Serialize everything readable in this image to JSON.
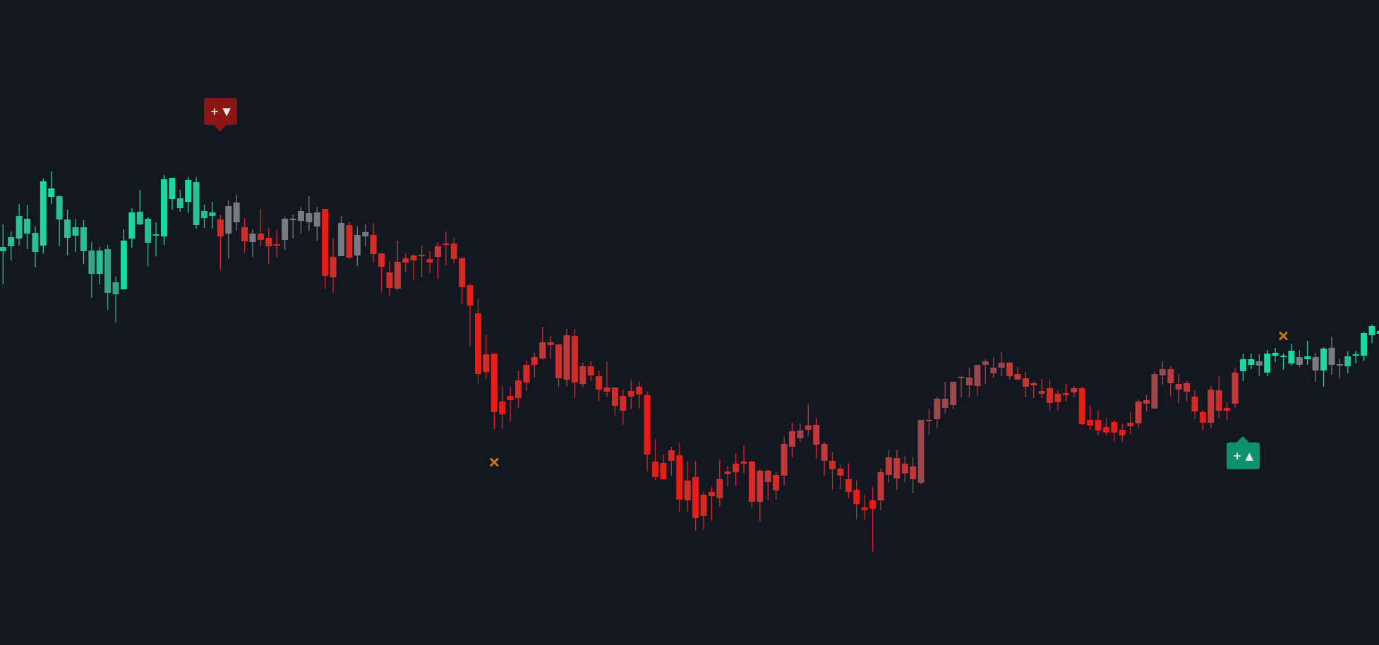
{
  "chart_data": {
    "type": "candlestick",
    "title": "",
    "xlabel": "",
    "ylabel": "",
    "ylim": [
      -14,
      900
    ],
    "grid": false,
    "background": "#131722",
    "colors": {
      "T1": "#17d9a3",
      "T2": "#2bbf98",
      "T3": "#36a58c",
      "G": "#787b86",
      "R1": "#e81e16",
      "R2": "#d42b26",
      "R3": "#c23838",
      "R4": "#9c474c",
      "cross": "#c77d12",
      "sell_flag": "#8b1510",
      "buy_flag": "#0e8f6e"
    },
    "candle_fields": [
      "body_top",
      "body_bottom",
      "high",
      "low",
      "color"
    ],
    "candles": [
      [
        550,
        544,
        582,
        497,
        "T2"
      ],
      [
        564,
        551,
        572,
        531,
        "T2"
      ],
      [
        594,
        562,
        611,
        552,
        "T2"
      ],
      [
        590,
        569,
        610,
        547,
        "T2"
      ],
      [
        570,
        543,
        579,
        521,
        "T2"
      ],
      [
        643,
        552,
        647,
        541,
        "T1"
      ],
      [
        633,
        621,
        657,
        611,
        "T1"
      ],
      [
        622,
        589,
        623,
        551,
        "T2"
      ],
      [
        589,
        563,
        603,
        538,
        "T2"
      ],
      [
        578,
        566,
        590,
        543,
        "T2"
      ],
      [
        578,
        544,
        588,
        526,
        "T2"
      ],
      [
        545,
        512,
        557,
        478,
        "T3"
      ],
      [
        545,
        512,
        550,
        497,
        "T2"
      ],
      [
        547,
        485,
        553,
        461,
        "T3"
      ],
      [
        500,
        483,
        508,
        443,
        "T3"
      ],
      [
        559,
        490,
        575,
        490,
        "T1"
      ],
      [
        599,
        562,
        605,
        549,
        "T1"
      ],
      [
        600,
        582,
        631,
        581,
        "T2"
      ],
      [
        590,
        556,
        592,
        523,
        "T2"
      ],
      [
        567,
        567,
        585,
        537,
        "T2"
      ],
      [
        646,
        565,
        652,
        553,
        "T1"
      ],
      [
        648,
        618,
        648,
        603,
        "T1"
      ],
      [
        619,
        605,
        631,
        600,
        "T2"
      ],
      [
        645,
        614,
        649,
        598,
        "T1"
      ],
      [
        642,
        581,
        649,
        576,
        "T2"
      ],
      [
        601,
        591,
        610,
        577,
        "T2"
      ],
      [
        599,
        594,
        614,
        576,
        "T2"
      ],
      [
        589,
        565,
        595,
        518,
        "R2"
      ],
      [
        608,
        569,
        616,
        534,
        "G"
      ],
      [
        613,
        585,
        624,
        573,
        "G"
      ],
      [
        578,
        558,
        591,
        542,
        "R2"
      ],
      [
        569,
        557,
        575,
        536,
        "G"
      ],
      [
        569,
        560,
        604,
        551,
        "R2"
      ],
      [
        563,
        551,
        577,
        526,
        "R2"
      ],
      [
        553,
        553,
        574,
        535,
        "R2"
      ],
      [
        590,
        560,
        593,
        546,
        "G"
      ],
      [
        589,
        589,
        596,
        562,
        "G"
      ],
      [
        601,
        587,
        607,
        569,
        "G"
      ],
      [
        598,
        585,
        622,
        573,
        "G"
      ],
      [
        599,
        579,
        607,
        559,
        "G"
      ],
      [
        604,
        509,
        604,
        491,
        "R1"
      ],
      [
        536,
        507,
        562,
        485,
        "R2"
      ],
      [
        584,
        537,
        594,
        537,
        "G"
      ],
      [
        581,
        535,
        586,
        533,
        "R2"
      ],
      [
        567,
        538,
        579,
        523,
        "G"
      ],
      [
        571,
        565,
        582,
        551,
        "G"
      ],
      [
        567,
        540,
        584,
        528,
        "R2"
      ],
      [
        541,
        522,
        541,
        487,
        "R2"
      ],
      [
        514,
        492,
        530,
        480,
        "R2"
      ],
      [
        529,
        491,
        559,
        489,
        "R3"
      ],
      [
        534,
        528,
        542,
        514,
        "R2"
      ],
      [
        538,
        531,
        540,
        503,
        "R2"
      ],
      [
        538,
        538,
        552,
        507,
        "R2"
      ],
      [
        533,
        528,
        544,
        513,
        "R2"
      ],
      [
        551,
        536,
        557,
        505,
        "R3"
      ],
      [
        554,
        554,
        572,
        524,
        "R2"
      ],
      [
        555,
        533,
        563,
        527,
        "R2"
      ],
      [
        534,
        493,
        536,
        469,
        "R2"
      ],
      [
        496,
        467,
        498,
        410,
        "R1"
      ],
      [
        456,
        370,
        477,
        356,
        "R1"
      ],
      [
        398,
        373,
        426,
        363,
        "R2"
      ],
      [
        399,
        316,
        399,
        292,
        "R1"
      ],
      [
        331,
        313,
        353,
        293,
        "R1"
      ],
      [
        339,
        333,
        352,
        303,
        "R1"
      ],
      [
        361,
        336,
        375,
        322,
        "R2"
      ],
      [
        383,
        358,
        389,
        346,
        "R2"
      ],
      [
        394,
        383,
        400,
        365,
        "R2"
      ],
      [
        415,
        392,
        437,
        390,
        "R3"
      ],
      [
        415,
        411,
        424,
        392,
        "R3"
      ],
      [
        412,
        364,
        412,
        352,
        "R2"
      ],
      [
        425,
        362,
        434,
        352,
        "R3"
      ],
      [
        424,
        358,
        433,
        336,
        "R2"
      ],
      [
        381,
        356,
        386,
        351,
        "R3"
      ],
      [
        381,
        368,
        388,
        360,
        "R2"
      ],
      [
        367,
        348,
        375,
        332,
        "R2"
      ],
      [
        351,
        345,
        387,
        337,
        "R2"
      ],
      [
        351,
        325,
        351,
        311,
        "R2"
      ],
      [
        339,
        318,
        348,
        298,
        "R2"
      ],
      [
        346,
        338,
        361,
        320,
        "R2"
      ],
      [
        352,
        341,
        359,
        321,
        "R2"
      ],
      [
        340,
        256,
        345,
        232,
        "R1"
      ],
      [
        246,
        224,
        278,
        220,
        "R1"
      ],
      [
        244,
        221,
        256,
        220,
        "R1"
      ],
      [
        262,
        247,
        267,
        226,
        "R2"
      ],
      [
        255,
        192,
        272,
        174,
        "R1"
      ],
      [
        219,
        191,
        246,
        175,
        "R2"
      ],
      [
        224,
        166,
        247,
        148,
        "R1"
      ],
      [
        199,
        169,
        203,
        149,
        "R2"
      ],
      [
        203,
        197,
        210,
        162,
        "R2"
      ],
      [
        221,
        194,
        249,
        182,
        "R2"
      ],
      [
        232,
        228,
        240,
        210,
        "R2"
      ],
      [
        243,
        231,
        257,
        211,
        "R2"
      ],
      [
        246,
        243,
        269,
        229,
        "R2"
      ],
      [
        246,
        189,
        247,
        181,
        "R2"
      ],
      [
        233,
        189,
        235,
        161,
        "R3"
      ],
      [
        233,
        217,
        234,
        191,
        "R3"
      ],
      [
        227,
        205,
        231,
        192,
        "R2"
      ],
      [
        271,
        226,
        281,
        212,
        "R3"
      ],
      [
        289,
        267,
        301,
        252,
        "R3"
      ],
      [
        290,
        279,
        300,
        274,
        "R4"
      ],
      [
        297,
        291,
        327,
        282,
        "R3"
      ],
      [
        298,
        270,
        308,
        250,
        "R3"
      ],
      [
        271,
        247,
        273,
        226,
        "R3"
      ],
      [
        247,
        235,
        259,
        207,
        "R2"
      ],
      [
        236,
        226,
        242,
        207,
        "R2"
      ],
      [
        221,
        203,
        243,
        194,
        "R2"
      ],
      [
        206,
        186,
        219,
        164,
        "R1"
      ],
      [
        181,
        177,
        199,
        163,
        "R1"
      ],
      [
        191,
        179,
        210,
        118,
        "R1"
      ],
      [
        231,
        191,
        236,
        177,
        "R3"
      ],
      [
        252,
        227,
        262,
        216,
        "R3"
      ],
      [
        251,
        222,
        263,
        206,
        "R3"
      ],
      [
        243,
        229,
        254,
        217,
        "R3"
      ],
      [
        239,
        221,
        252,
        201,
        "R3"
      ],
      [
        305,
        216,
        305,
        214,
        "R4"
      ],
      [
        304,
        304,
        321,
        283,
        "R4"
      ],
      [
        335,
        306,
        338,
        293,
        "R4"
      ],
      [
        335,
        322,
        359,
        314,
        "R4"
      ],
      [
        359,
        326,
        359,
        320,
        "R4"
      ],
      [
        365,
        365,
        368,
        337,
        "R4"
      ],
      [
        365,
        354,
        379,
        337,
        "R4"
      ],
      [
        383,
        353,
        383,
        339,
        "R4"
      ],
      [
        388,
        383,
        391,
        356,
        "R4"
      ],
      [
        379,
        371,
        394,
        365,
        "R4"
      ],
      [
        386,
        379,
        402,
        367,
        "R4"
      ],
      [
        386,
        367,
        387,
        362,
        "R3"
      ],
      [
        370,
        362,
        380,
        362,
        "R3"
      ],
      [
        364,
        352,
        373,
        337,
        "R3"
      ],
      [
        357,
        354,
        359,
        336,
        "R3"
      ],
      [
        346,
        342,
        363,
        336,
        "R2"
      ],
      [
        350,
        329,
        362,
        318,
        "R2"
      ],
      [
        342,
        330,
        347,
        318,
        "R2"
      ],
      [
        343,
        340,
        356,
        331,
        "R2"
      ],
      [
        350,
        344,
        353,
        337,
        "R3"
      ],
      [
        350,
        299,
        352,
        297,
        "R1"
      ],
      [
        305,
        297,
        326,
        291,
        "R1"
      ],
      [
        305,
        290,
        318,
        283,
        "R1"
      ],
      [
        295,
        287,
        308,
        283,
        "R1"
      ],
      [
        302,
        287,
        305,
        274,
        "R1"
      ],
      [
        291,
        283,
        299,
        274,
        "R1"
      ],
      [
        301,
        296,
        317,
        285,
        "R2"
      ],
      [
        331,
        300,
        334,
        293,
        "R3"
      ],
      [
        333,
        328,
        340,
        317,
        "R3"
      ],
      [
        370,
        321,
        374,
        321,
        "R4"
      ],
      [
        377,
        368,
        388,
        355,
        "R4"
      ],
      [
        377,
        357,
        381,
        338,
        "R3"
      ],
      [
        356,
        348,
        370,
        328,
        "R3"
      ],
      [
        357,
        345,
        360,
        332,
        "R3"
      ],
      [
        338,
        317,
        347,
        306,
        "R2"
      ],
      [
        316,
        301,
        319,
        290,
        "R1"
      ],
      [
        348,
        301,
        353,
        294,
        "R3"
      ],
      [
        347,
        318,
        368,
        307,
        "R2"
      ],
      [
        322,
        318,
        330,
        304,
        "R2"
      ],
      [
        372,
        328,
        378,
        322,
        "R3"
      ],
      [
        391,
        374,
        399,
        360,
        "T1"
      ],
      [
        391,
        383,
        399,
        377,
        "T1"
      ],
      [
        388,
        382,
        398,
        367,
        "G"
      ],
      [
        399,
        372,
        404,
        367,
        "T1"
      ],
      [
        400,
        396,
        407,
        387,
        "T1"
      ],
      [
        395,
        395,
        399,
        376,
        "T1"
      ],
      [
        403,
        385,
        413,
        382,
        "T1"
      ],
      [
        394,
        383,
        404,
        380,
        "G"
      ],
      [
        395,
        391,
        417,
        383,
        "T1"
      ],
      [
        394,
        375,
        400,
        359,
        "G"
      ],
      [
        406,
        375,
        408,
        352,
        "T1"
      ],
      [
        407,
        383,
        423,
        369,
        "G"
      ],
      [
        383,
        383,
        392,
        364,
        "G"
      ],
      [
        395,
        381,
        402,
        371,
        "T2"
      ],
      [
        397,
        397,
        403,
        385,
        "T1"
      ],
      [
        428,
        396,
        430,
        389,
        "T1"
      ],
      [
        438,
        425,
        440,
        414,
        "T1"
      ],
      [
        431,
        427,
        433,
        424,
        "T1"
      ]
    ],
    "signals": [
      {
        "type": "sell",
        "candle": 28,
        "plus": "+",
        "arrow": "▼"
      },
      {
        "type": "buy",
        "candle": 155,
        "plus": "+",
        "arrow": "▲"
      }
    ],
    "cross_markers": [
      {
        "candle": 62,
        "value": 245
      },
      {
        "candle": 160,
        "value": 424
      }
    ]
  }
}
